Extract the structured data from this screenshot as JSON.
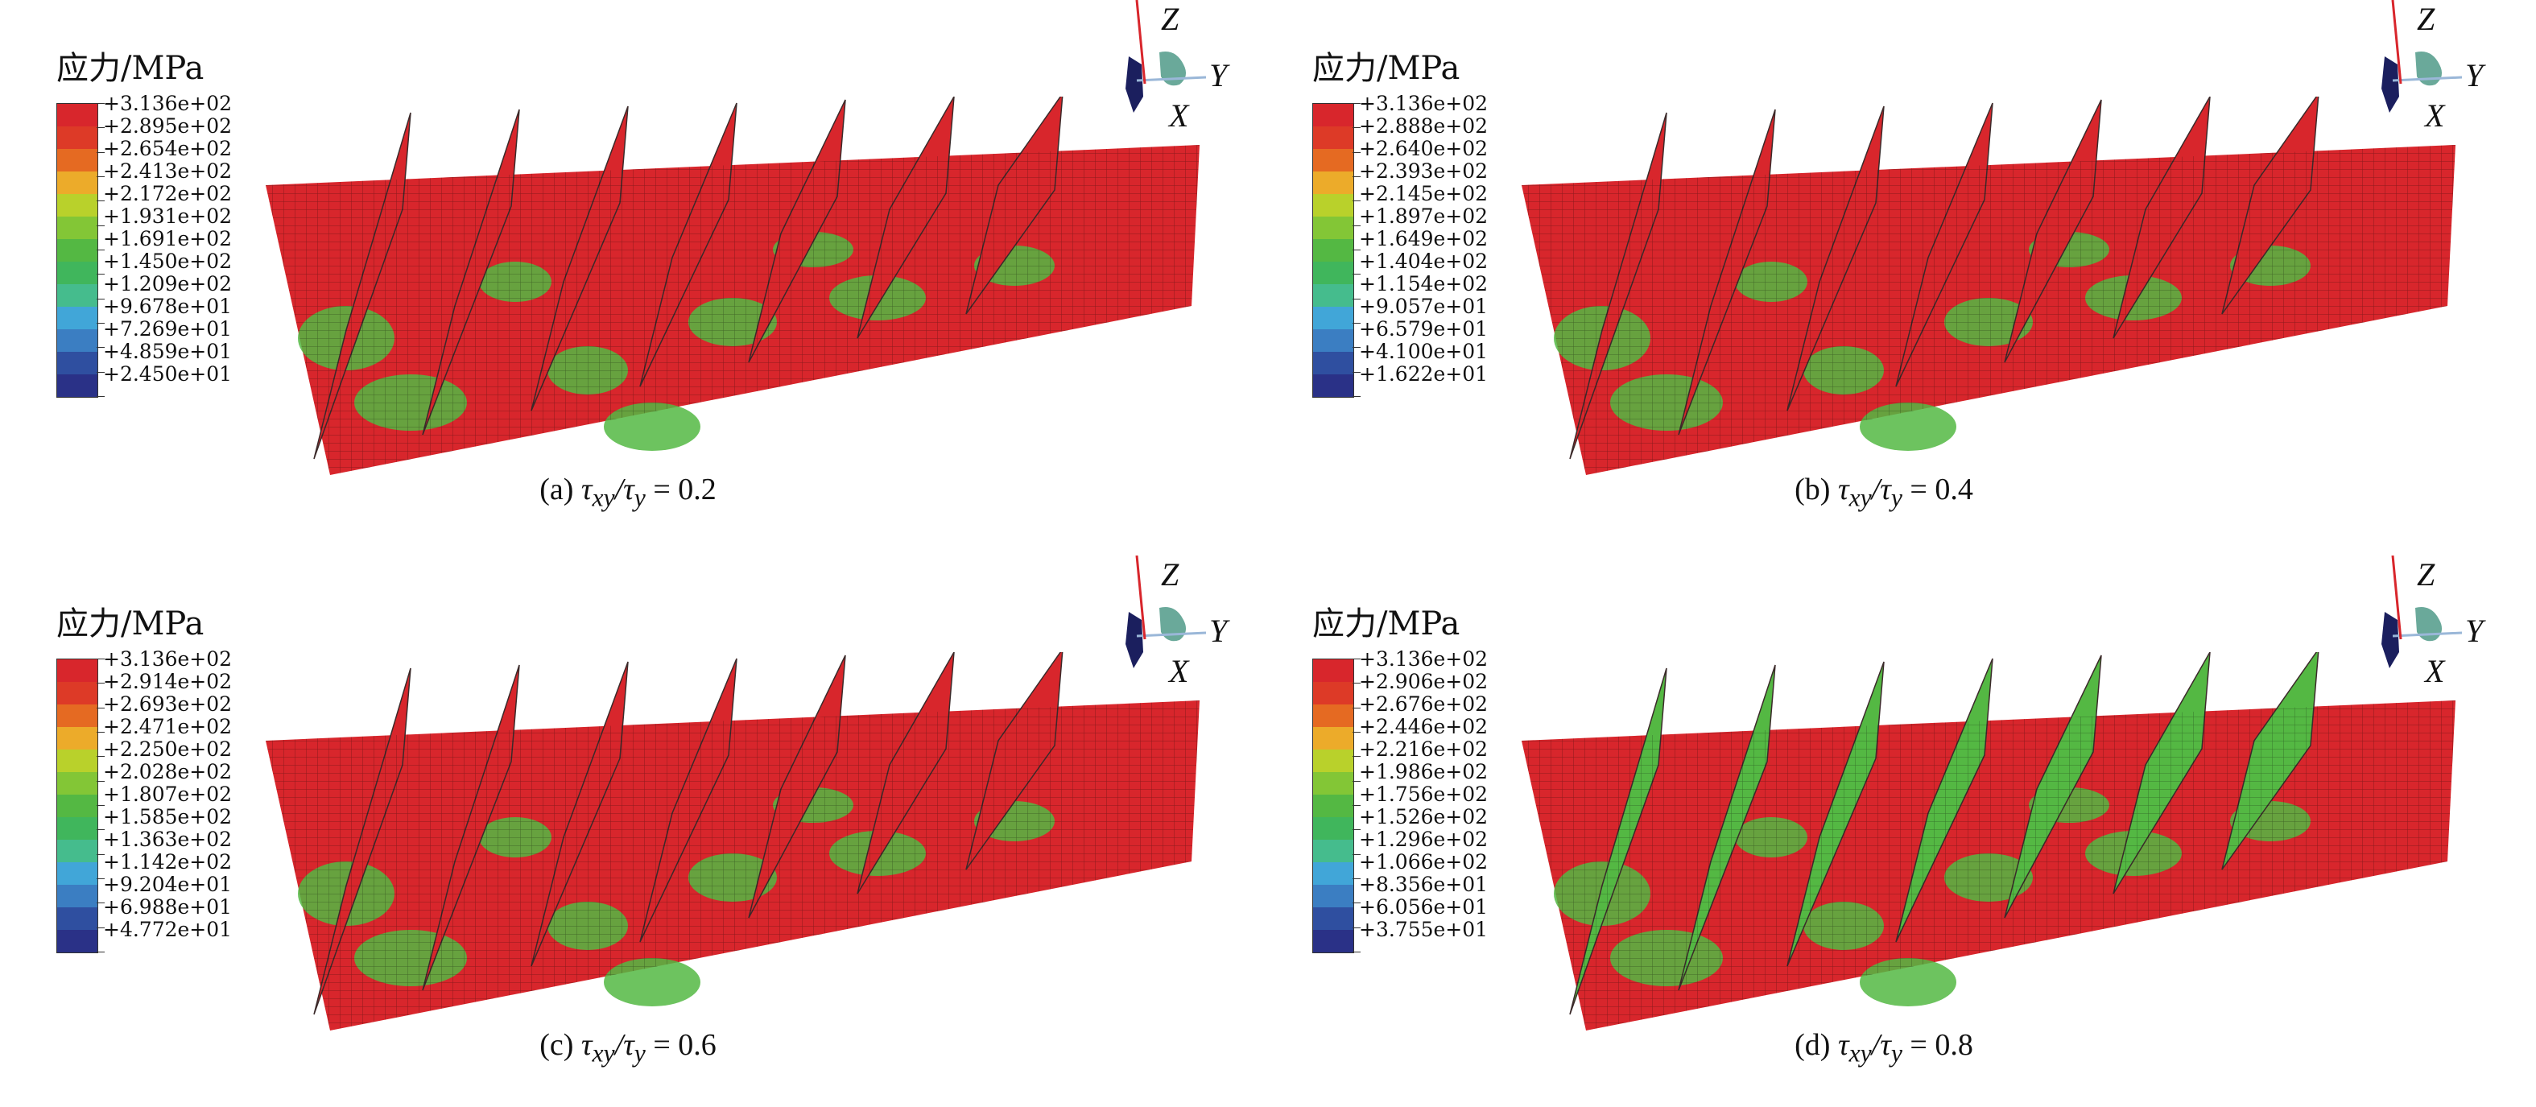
{
  "legend_title": "应力/MPa",
  "colors": [
    "#d8262c",
    "#dd3a27",
    "#e56a22",
    "#ecab2a",
    "#b9d12b",
    "#83c636",
    "#54b843",
    "#40b65c",
    "#45bc8d",
    "#41a6d8",
    "#3b7ec2",
    "#2f4fa0",
    "#2a3187"
  ],
  "triad_labels": {
    "z": "Z",
    "y": "Y",
    "x": "X"
  },
  "panels": [
    {
      "legend_values": [
        "+3.136e+02",
        "+2.895e+02",
        "+2.654e+02",
        "+2.413e+02",
        "+2.172e+02",
        "+1.931e+02",
        "+1.691e+02",
        "+1.450e+02",
        "+1.209e+02",
        "+9.678e+01",
        "+7.269e+01",
        "+4.859e+01",
        "+2.450e+01"
      ],
      "caption_prefix": "(a)",
      "caption_value": "0.2"
    },
    {
      "legend_values": [
        "+3.136e+02",
        "+2.888e+02",
        "+2.640e+02",
        "+2.393e+02",
        "+2.145e+02",
        "+1.897e+02",
        "+1.649e+02",
        "+1.404e+02",
        "+1.154e+02",
        "+9.057e+01",
        "+6.579e+01",
        "+4.100e+01",
        "+1.622e+01"
      ],
      "caption_prefix": "(b)",
      "caption_value": "0.4"
    },
    {
      "legend_values": [
        "+3.136e+02",
        "+2.914e+02",
        "+2.693e+02",
        "+2.471e+02",
        "+2.250e+02",
        "+2.028e+02",
        "+1.807e+02",
        "+1.585e+02",
        "+1.363e+02",
        "+1.142e+02",
        "+9.204e+01",
        "+6.988e+01",
        "+4.772e+01"
      ],
      "caption_prefix": "(c)",
      "caption_value": "0.6"
    },
    {
      "legend_values": [
        "+3.136e+02",
        "+2.906e+02",
        "+2.676e+02",
        "+2.446e+02",
        "+2.216e+02",
        "+1.986e+02",
        "+1.756e+02",
        "+1.526e+02",
        "+1.296e+02",
        "+1.066e+02",
        "+8.356e+01",
        "+6.056e+01",
        "+3.755e+01"
      ],
      "caption_prefix": "(d)",
      "caption_value": "0.8"
    }
  ]
}
